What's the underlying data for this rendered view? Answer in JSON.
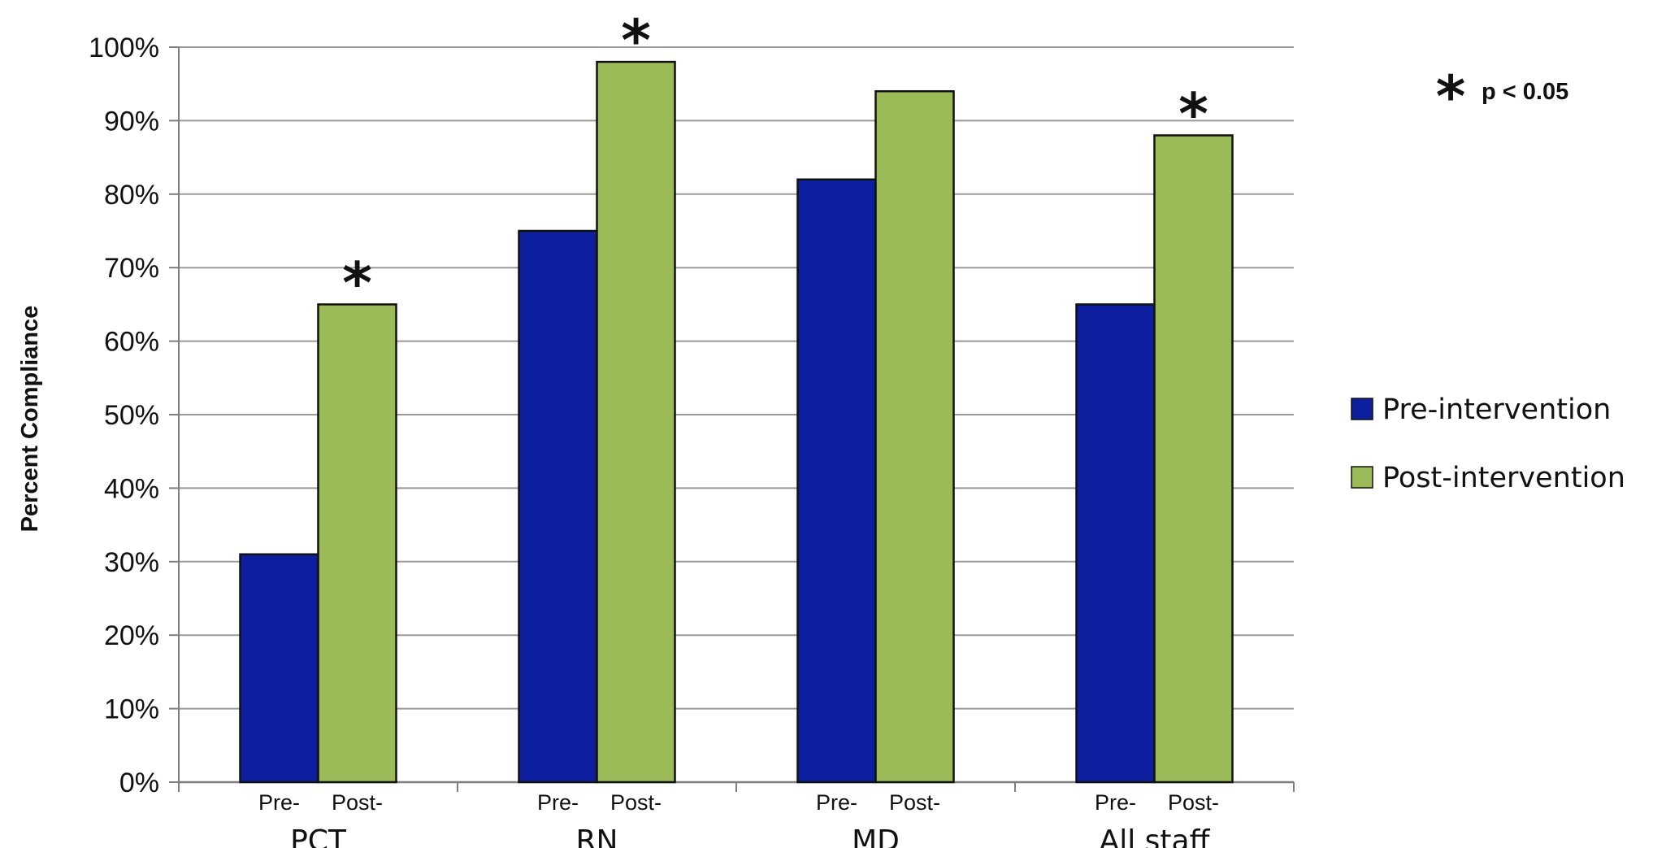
{
  "chart_data": {
    "type": "bar",
    "ylabel": "Percent Compliance",
    "ylim": [
      0,
      100
    ],
    "ytick_labels": [
      "0%",
      "10%",
      "20%",
      "30%",
      "40%",
      "50%",
      "60%",
      "70%",
      "80%",
      "90%",
      "100%"
    ],
    "categories": [
      "PCT",
      "RN",
      "MD",
      "All staff"
    ],
    "bar_sublabels": [
      "Pre-",
      "Post-"
    ],
    "series": [
      {
        "name": "Pre-intervention",
        "color": "#0d1f9e",
        "values": [
          31,
          75,
          82,
          65
        ]
      },
      {
        "name": "Post-intervention",
        "color": "#9bbb59",
        "values": [
          65,
          98,
          94,
          88
        ]
      }
    ],
    "significance_marker": "*",
    "significant": [
      true,
      true,
      false,
      true
    ],
    "annotation": {
      "marker": "*",
      "text": "p < 0.05"
    },
    "grid": true,
    "legend_position": "right"
  }
}
